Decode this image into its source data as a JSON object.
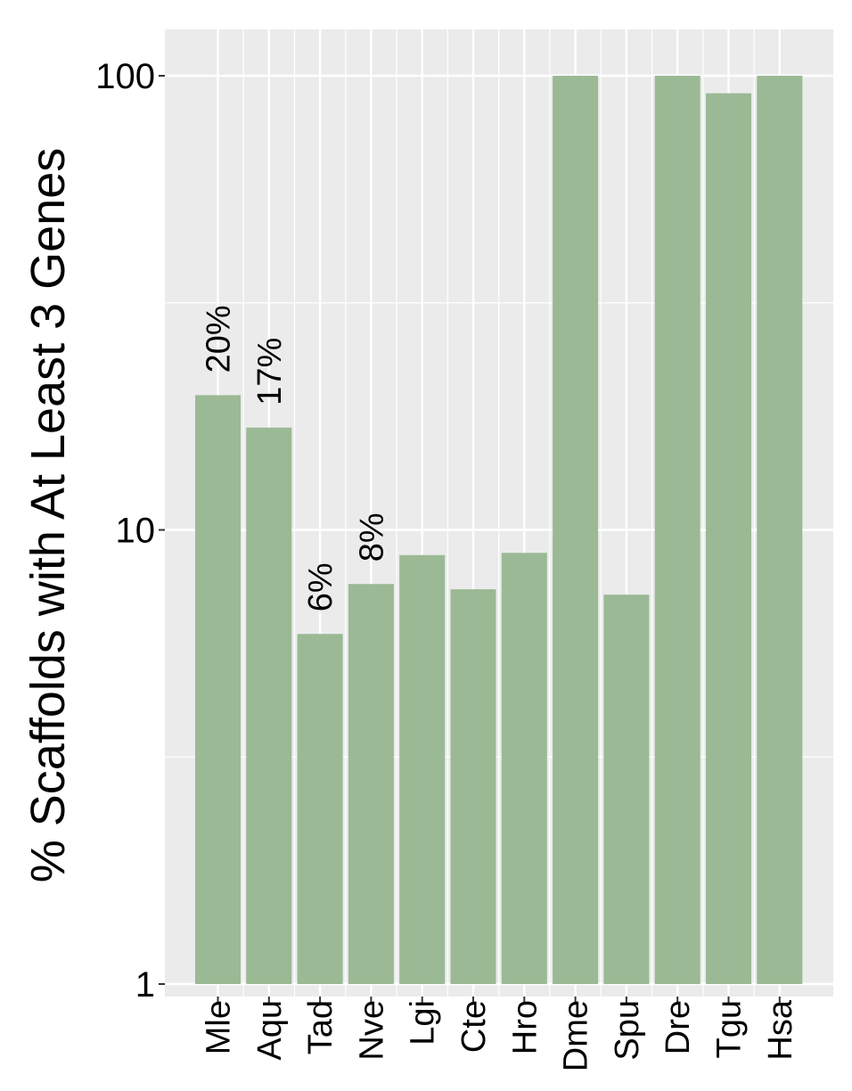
{
  "chart_data": {
    "type": "bar",
    "ylabel": "% Scaffolds with At Least 3 Genes",
    "xlabel": "",
    "y_scale": "log10",
    "ylim": [
      1,
      100
    ],
    "y_ticks": [
      "1",
      "10",
      "100"
    ],
    "grid": true,
    "bar_color": "#9ab994",
    "panel_color": "#ebebeb",
    "categories": [
      "Mle",
      "Aqu",
      "Tad",
      "Nve",
      "Lgi",
      "Cte",
      "Hro",
      "Dme",
      "Spu",
      "Dre",
      "Tgu",
      "Hsa"
    ],
    "values": [
      19.8,
      16.8,
      5.9,
      7.6,
      8.8,
      7.4,
      8.9,
      100,
      7.2,
      100,
      91.5,
      100
    ],
    "data_labels": [
      "20%",
      "17%",
      "6%",
      "8%",
      "",
      "",
      "",
      "",
      "",
      "",
      "",
      ""
    ]
  }
}
